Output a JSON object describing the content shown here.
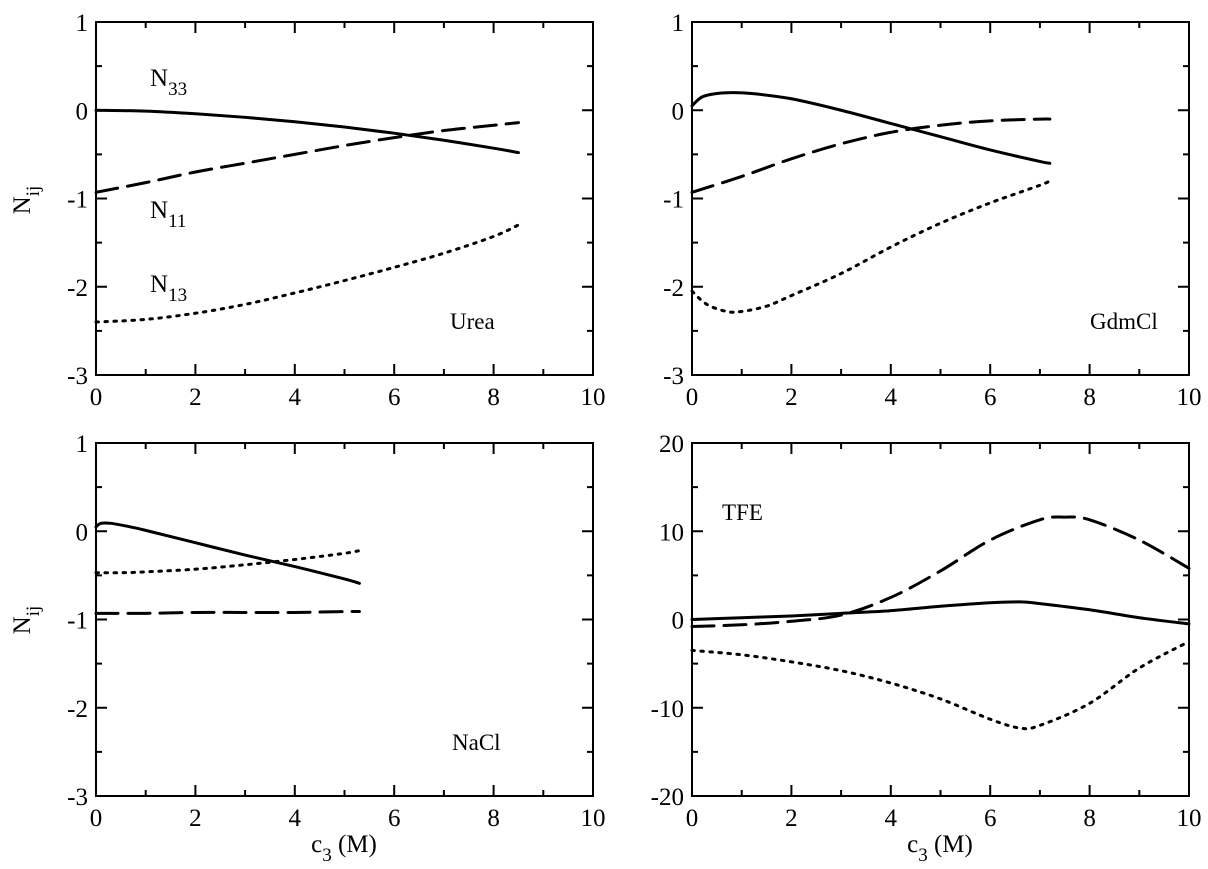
{
  "chart_data": [
    {
      "type": "line",
      "panel_label": "Urea",
      "xlabel": "",
      "ylabel": "N",
      "ylabel_sub": "ij",
      "xlim": [
        0,
        10
      ],
      "ylim": [
        -3,
        1
      ],
      "xticks": [
        0,
        2,
        4,
        6,
        8,
        10
      ],
      "yticks": [
        -3,
        -2,
        -1,
        0,
        1
      ],
      "series": [
        {
          "name": "N33",
          "label_main": "N",
          "label_sub": "33",
          "style": "solid",
          "x": [
            0,
            1,
            2,
            3,
            4,
            5,
            6,
            7,
            8,
            8.5
          ],
          "y": [
            0.0,
            -0.01,
            -0.04,
            -0.08,
            -0.13,
            -0.19,
            -0.26,
            -0.34,
            -0.43,
            -0.48
          ]
        },
        {
          "name": "N11",
          "label_main": "N",
          "label_sub": "11",
          "style": "dashed",
          "x": [
            0,
            1,
            2,
            3,
            4,
            5,
            6,
            7,
            8,
            8.5
          ],
          "y": [
            -0.93,
            -0.82,
            -0.7,
            -0.6,
            -0.5,
            -0.4,
            -0.31,
            -0.23,
            -0.17,
            -0.14
          ]
        },
        {
          "name": "N13",
          "label_main": "N",
          "label_sub": "13",
          "style": "dotted",
          "x": [
            0,
            1,
            2,
            3,
            4,
            5,
            6,
            7,
            8,
            8.5
          ],
          "y": [
            -2.4,
            -2.37,
            -2.3,
            -2.2,
            -2.07,
            -1.93,
            -1.78,
            -1.62,
            -1.43,
            -1.3
          ]
        }
      ]
    },
    {
      "type": "line",
      "panel_label": "GdmCl",
      "xlabel": "",
      "ylabel": "",
      "xlim": [
        0,
        10
      ],
      "ylim": [
        -3,
        1
      ],
      "xticks": [
        0,
        2,
        4,
        6,
        8,
        10
      ],
      "yticks": [
        -3,
        -2,
        -1,
        0,
        1
      ],
      "series": [
        {
          "style": "solid",
          "x": [
            0,
            0.2,
            0.5,
            0.8,
            1.2,
            2,
            3,
            4,
            5,
            6,
            7,
            7.2
          ],
          "y": [
            0.05,
            0.15,
            0.19,
            0.2,
            0.19,
            0.13,
            0.0,
            -0.15,
            -0.3,
            -0.45,
            -0.58,
            -0.6
          ]
        },
        {
          "style": "dashed",
          "x": [
            0,
            1,
            2,
            3,
            4,
            5,
            6,
            7,
            7.2
          ],
          "y": [
            -0.93,
            -0.75,
            -0.55,
            -0.38,
            -0.25,
            -0.17,
            -0.12,
            -0.1,
            -0.1
          ]
        },
        {
          "style": "dotted",
          "x": [
            0,
            0.3,
            0.7,
            1,
            1.5,
            2,
            3,
            4,
            5,
            6,
            7,
            7.2
          ],
          "y": [
            -2.05,
            -2.2,
            -2.28,
            -2.28,
            -2.22,
            -2.1,
            -1.85,
            -1.55,
            -1.28,
            -1.05,
            -0.85,
            -0.8
          ]
        }
      ]
    },
    {
      "type": "line",
      "panel_label": "NaCl",
      "xlabel": "c",
      "xlabel_sub": "3",
      "xlabel_unit": " (M)",
      "ylabel": "N",
      "ylabel_sub": "ij",
      "xlim": [
        0,
        10
      ],
      "ylim": [
        -3,
        1
      ],
      "xticks": [
        0,
        2,
        4,
        6,
        8,
        10
      ],
      "yticks": [
        -3,
        -2,
        -1,
        0,
        1
      ],
      "series": [
        {
          "style": "solid",
          "x": [
            0,
            0.1,
            0.3,
            0.6,
            1,
            2,
            3,
            4,
            5,
            5.3
          ],
          "y": [
            0.05,
            0.09,
            0.09,
            0.06,
            0.01,
            -0.13,
            -0.27,
            -0.4,
            -0.54,
            -0.59
          ]
        },
        {
          "style": "dashed",
          "x": [
            0,
            1,
            2,
            3,
            4,
            5,
            5.3
          ],
          "y": [
            -0.93,
            -0.93,
            -0.92,
            -0.92,
            -0.92,
            -0.91,
            -0.91
          ]
        },
        {
          "style": "dotted",
          "x": [
            0,
            0.5,
            1,
            2,
            3,
            4,
            5,
            5.3
          ],
          "y": [
            -0.47,
            -0.47,
            -0.46,
            -0.43,
            -0.38,
            -0.32,
            -0.25,
            -0.22
          ]
        }
      ]
    },
    {
      "type": "line",
      "panel_label": "TFE",
      "xlabel": "c",
      "xlabel_sub": "3",
      "xlabel_unit": " (M)",
      "ylabel": "",
      "xlim": [
        0,
        10
      ],
      "ylim": [
        -20,
        20
      ],
      "xticks": [
        0,
        2,
        4,
        6,
        8,
        10
      ],
      "yticks": [
        -20,
        -10,
        0,
        10,
        20
      ],
      "series": [
        {
          "style": "solid",
          "x": [
            0,
            1,
            2,
            3,
            4,
            5,
            6,
            6.6,
            7,
            8,
            9,
            10
          ],
          "y": [
            0,
            0.2,
            0.4,
            0.7,
            1.0,
            1.5,
            1.9,
            2.0,
            1.8,
            1.1,
            0.2,
            -0.5
          ]
        },
        {
          "style": "dashed",
          "x": [
            0,
            1,
            2,
            3,
            4,
            5,
            6,
            7,
            7.5,
            8,
            9,
            10
          ],
          "y": [
            -0.8,
            -0.6,
            -0.2,
            0.5,
            2.5,
            5.5,
            9.0,
            11.3,
            11.6,
            11.3,
            9.0,
            5.8
          ]
        },
        {
          "style": "dotted",
          "x": [
            0,
            1,
            2,
            3,
            4,
            5,
            6,
            6.6,
            7,
            8,
            9,
            10
          ],
          "y": [
            -3.5,
            -4.0,
            -4.8,
            -5.8,
            -7.2,
            -9.0,
            -11.3,
            -12.3,
            -12.0,
            -9.5,
            -5.5,
            -2.5
          ]
        }
      ]
    }
  ]
}
